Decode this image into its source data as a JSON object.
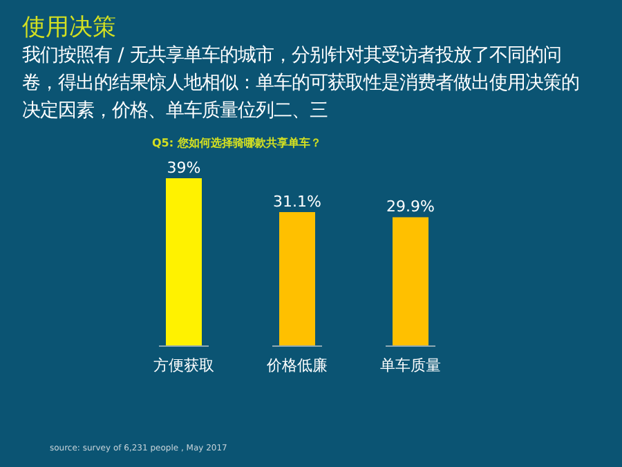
{
  "chart_data": {
    "type": "bar",
    "title": "使用决策",
    "subtitle": "我们按照有 / 无共享单车的城市，分别针对其受访者投放了不同的问卷，得出的结果惊人地相似：单车的可获取性是消费者做出使用决策的决定因素，价格、单车质量位列二、三",
    "xlabel": "Q5: 您如何选择骑哪款共享单车？",
    "categories": [
      "方便获取",
      "价格低廉",
      "单车质量"
    ],
    "values": [
      39,
      31.1,
      29.9
    ],
    "colors": [
      "#fff200",
      "#ffc000",
      "#ffc000"
    ],
    "value_labels": [
      "39%",
      "31.1%",
      "29.9%"
    ],
    "annotations": [
      "source: survey of 6,231 people , May 2017"
    ]
  }
}
